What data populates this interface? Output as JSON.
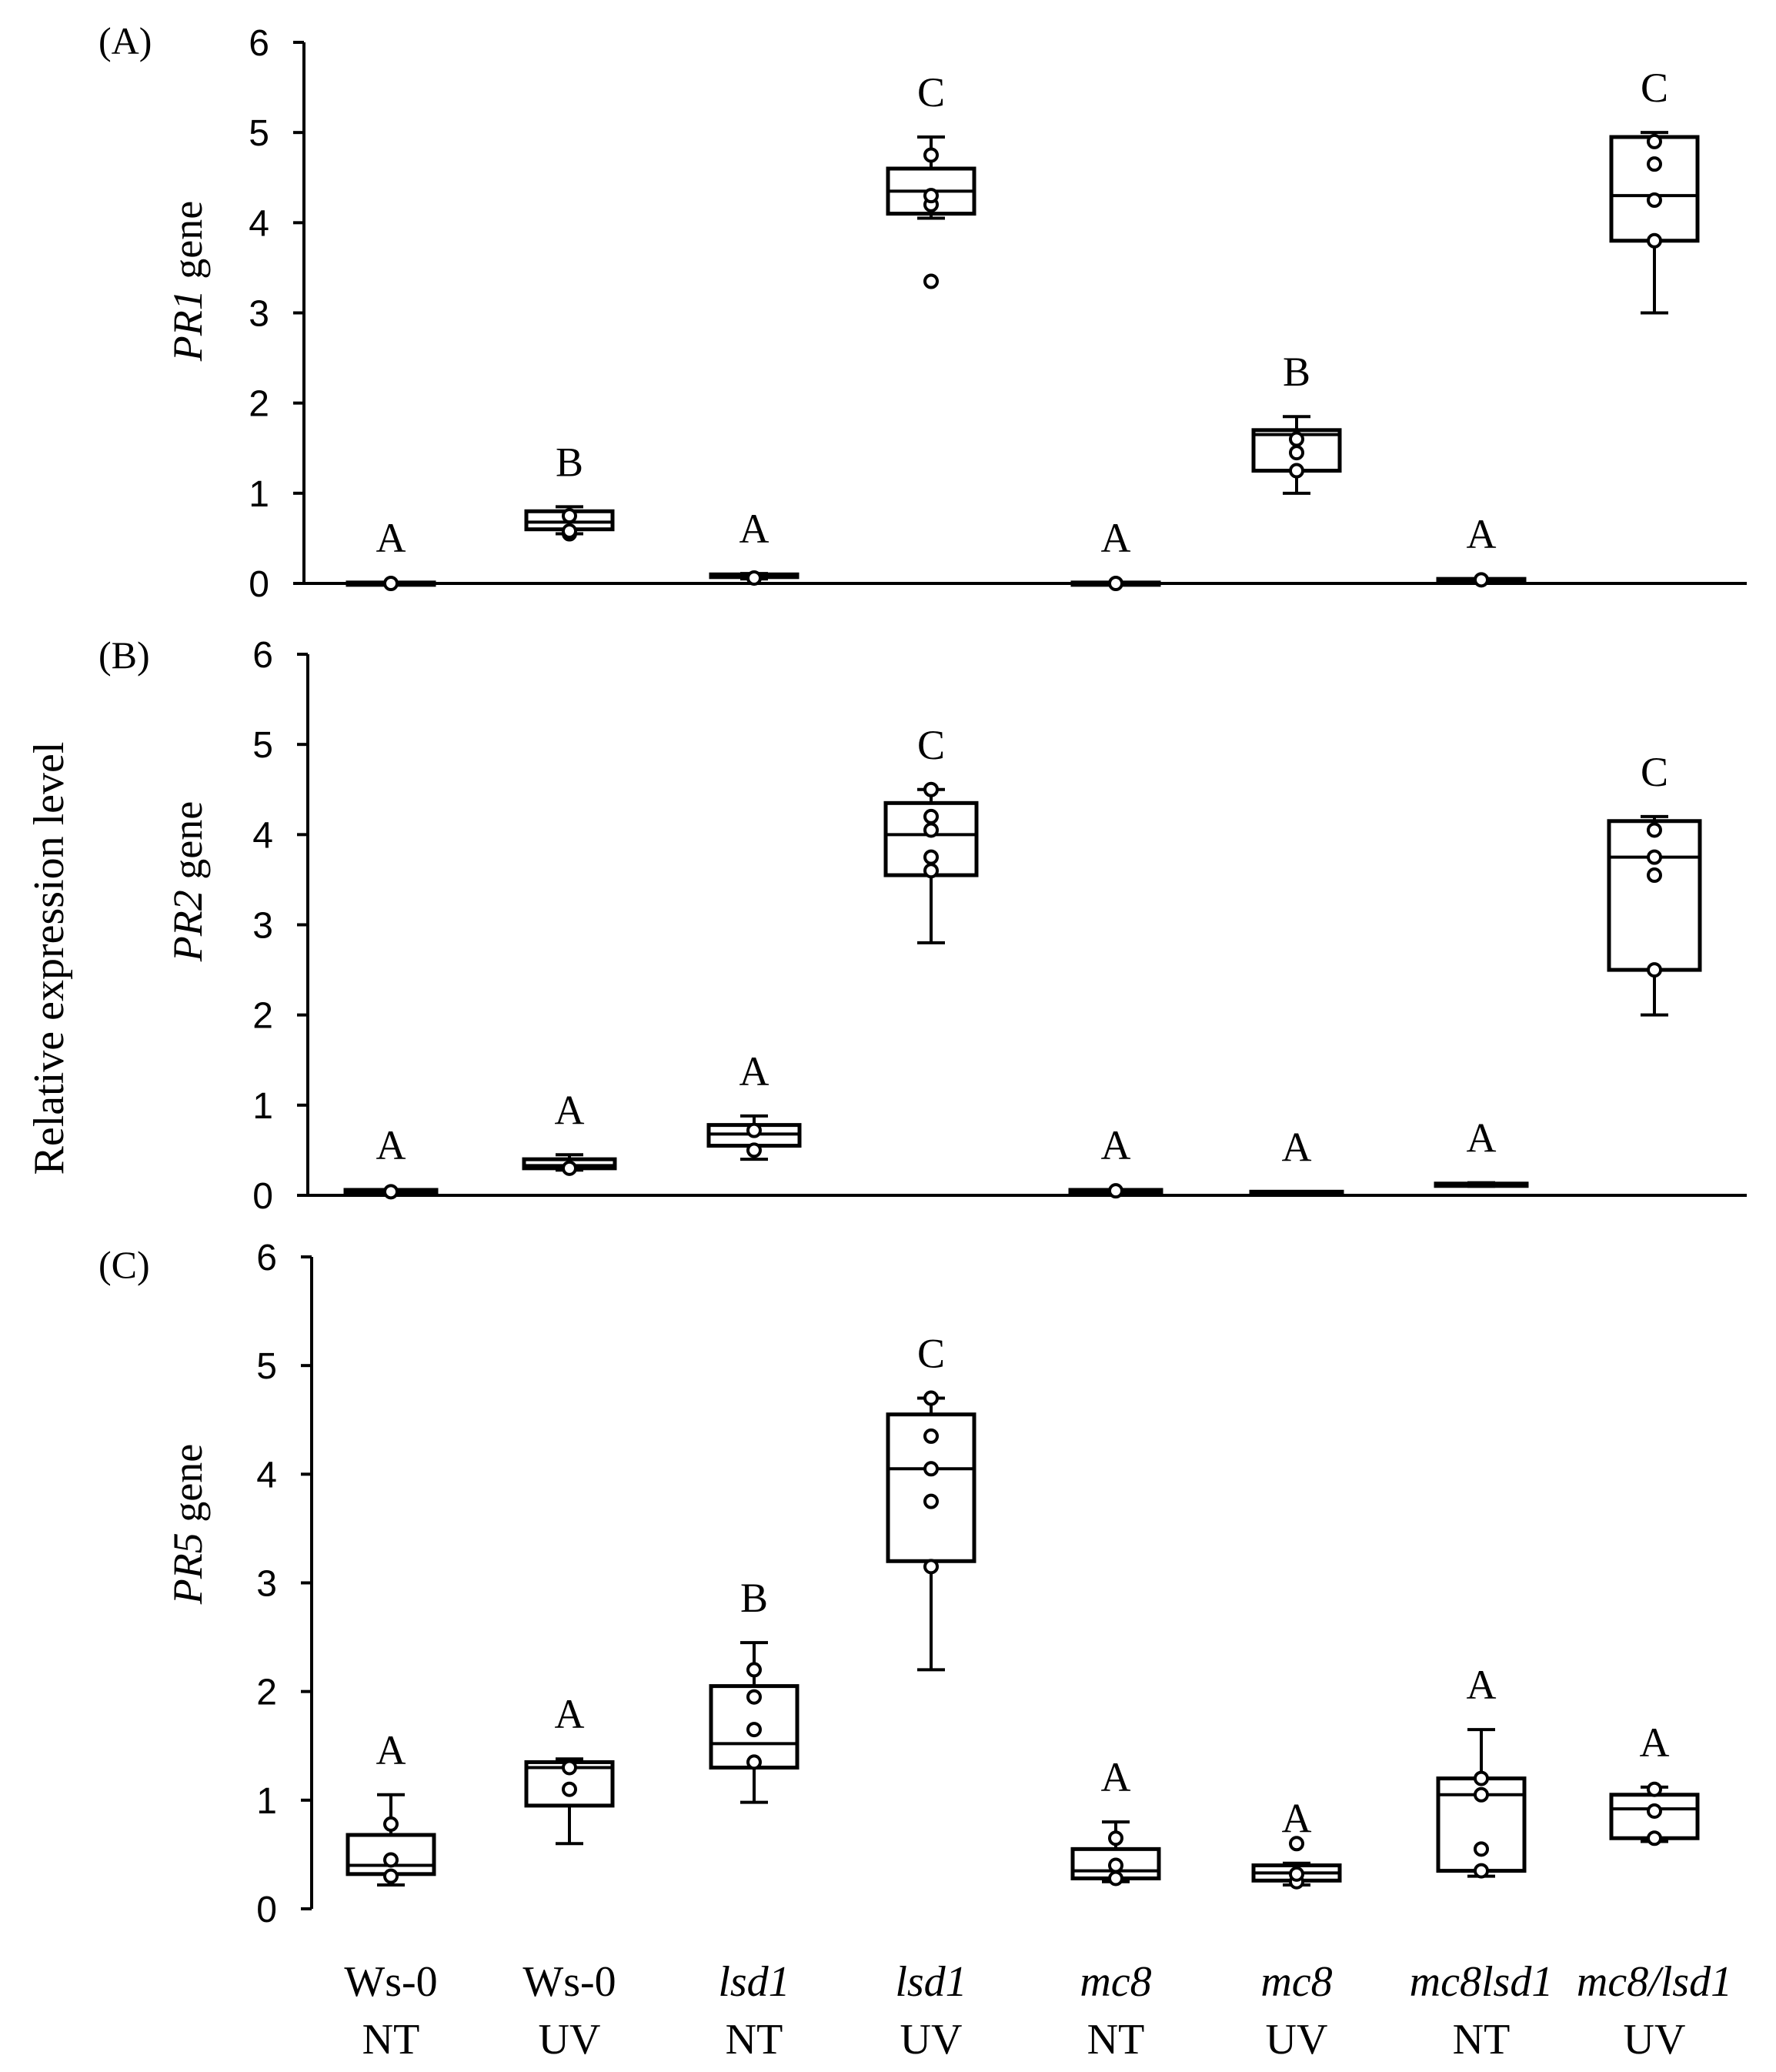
{
  "ylabel": "Relative expression level",
  "x_categories": [
    {
      "line1": "Ws-0",
      "line2": "NT",
      "italic": false
    },
    {
      "line1": "Ws-0",
      "line2": "UV",
      "italic": false
    },
    {
      "line1": "lsd1",
      "line2": "NT",
      "italic": true
    },
    {
      "line1": "lsd1",
      "line2": "UV",
      "italic": true
    },
    {
      "line1": "mc8",
      "line2": "NT",
      "italic": true
    },
    {
      "line1": "mc8",
      "line2": "UV",
      "italic": true
    },
    {
      "line1": "mc8lsd1",
      "line2": "NT",
      "italic": true
    },
    {
      "line1": "mc8/lsd1",
      "line2": "UV",
      "italic": true
    }
  ],
  "chart_data": [
    {
      "type": "box",
      "panel": "(A)",
      "gene": "PR1",
      "gene_suffix": " gene",
      "ylim": [
        0,
        6
      ],
      "yticks": [
        "0",
        "1",
        "2",
        "3",
        "4",
        "5",
        "6"
      ],
      "groups": [
        {
          "letter": "A",
          "min": 0.0,
          "q1": 0.0,
          "median": 0.0,
          "q3": 0.01,
          "max": 0.01,
          "points": [
            0.0
          ]
        },
        {
          "letter": "B",
          "min": 0.55,
          "q1": 0.6,
          "median": 0.68,
          "q3": 0.8,
          "max": 0.85,
          "points": [
            0.55,
            0.58,
            0.75
          ]
        },
        {
          "letter": "A",
          "min": 0.05,
          "q1": 0.07,
          "median": 0.08,
          "q3": 0.1,
          "max": 0.11,
          "points": [
            0.06
          ]
        },
        {
          "letter": "C",
          "min": 4.05,
          "q1": 4.1,
          "median": 4.35,
          "q3": 4.6,
          "max": 4.95,
          "points": [
            3.35,
            4.2,
            4.3,
            4.75
          ]
        },
        {
          "letter": "A",
          "min": 0.0,
          "q1": 0.0,
          "median": 0.0,
          "q3": 0.01,
          "max": 0.01,
          "points": [
            0.0
          ]
        },
        {
          "letter": "B",
          "min": 1.0,
          "q1": 1.25,
          "median": 1.65,
          "q3": 1.7,
          "max": 1.85,
          "points": [
            1.25,
            1.45,
            1.6
          ]
        },
        {
          "letter": "A",
          "min": 0.03,
          "q1": 0.03,
          "median": 0.04,
          "q3": 0.05,
          "max": 0.05,
          "points": [
            0.04
          ]
        },
        {
          "letter": "C",
          "min": 3.0,
          "q1": 3.8,
          "median": 4.3,
          "q3": 4.95,
          "max": 5.0,
          "points": [
            3.8,
            4.25,
            4.65,
            4.9
          ]
        }
      ]
    },
    {
      "type": "box",
      "panel": "(B)",
      "gene": "PR2",
      "gene_suffix": " gene",
      "ylim": [
        0,
        6
      ],
      "yticks": [
        "0",
        "1",
        "2",
        "3",
        "4",
        "5",
        "6"
      ],
      "groups": [
        {
          "letter": "A",
          "min": 0.03,
          "q1": 0.03,
          "median": 0.04,
          "q3": 0.06,
          "max": 0.06,
          "points": [
            0.04
          ]
        },
        {
          "letter": "A",
          "min": 0.28,
          "q1": 0.3,
          "median": 0.33,
          "q3": 0.4,
          "max": 0.45,
          "points": [
            0.3
          ]
        },
        {
          "letter": "A",
          "min": 0.4,
          "q1": 0.55,
          "median": 0.68,
          "q3": 0.78,
          "max": 0.88,
          "points": [
            0.5,
            0.72
          ]
        },
        {
          "letter": "C",
          "min": 2.8,
          "q1": 3.55,
          "median": 4.0,
          "q3": 4.35,
          "max": 4.5,
          "points": [
            3.6,
            3.75,
            4.05,
            4.2,
            4.5
          ]
        },
        {
          "letter": "A",
          "min": 0.04,
          "q1": 0.04,
          "median": 0.05,
          "q3": 0.06,
          "max": 0.06,
          "points": [
            0.05
          ]
        },
        {
          "letter": "A",
          "min": 0.02,
          "q1": 0.02,
          "median": 0.03,
          "q3": 0.04,
          "max": 0.04,
          "points": []
        },
        {
          "letter": "A",
          "min": 0.1,
          "q1": 0.11,
          "median": 0.12,
          "q3": 0.13,
          "max": 0.14,
          "points": []
        },
        {
          "letter": "C",
          "min": 2.0,
          "q1": 2.5,
          "median": 3.75,
          "q3": 4.15,
          "max": 4.2,
          "points": [
            2.5,
            3.55,
            3.75,
            4.05
          ]
        }
      ]
    },
    {
      "type": "box",
      "panel": "(C)",
      "gene": "PR5",
      "gene_suffix": " gene",
      "ylim": [
        0,
        6
      ],
      "yticks": [
        "0",
        "1",
        "2",
        "3",
        "4",
        "5",
        "6"
      ],
      "groups": [
        {
          "letter": "A",
          "min": 0.22,
          "q1": 0.32,
          "median": 0.4,
          "q3": 0.68,
          "max": 1.05,
          "points": [
            0.3,
            0.45,
            0.78
          ]
        },
        {
          "letter": "A",
          "min": 0.6,
          "q1": 0.95,
          "median": 1.3,
          "q3": 1.35,
          "max": 1.38,
          "points": [
            1.1,
            1.3
          ]
        },
        {
          "letter": "B",
          "min": 0.98,
          "q1": 1.3,
          "median": 1.52,
          "q3": 2.05,
          "max": 2.45,
          "points": [
            1.35,
            1.65,
            1.95,
            2.2
          ]
        },
        {
          "letter": "C",
          "min": 2.2,
          "q1": 3.2,
          "median": 4.05,
          "q3": 4.55,
          "max": 4.7,
          "points": [
            3.15,
            3.75,
            4.05,
            4.35,
            4.7
          ]
        },
        {
          "letter": "A",
          "min": 0.25,
          "q1": 0.28,
          "median": 0.35,
          "q3": 0.55,
          "max": 0.8,
          "points": [
            0.28,
            0.4,
            0.65
          ]
        },
        {
          "letter": "A",
          "min": 0.22,
          "q1": 0.26,
          "median": 0.33,
          "q3": 0.4,
          "max": 0.42,
          "points": [
            0.25,
            0.32,
            0.6
          ]
        },
        {
          "letter": "A",
          "min": 0.3,
          "q1": 0.35,
          "median": 1.05,
          "q3": 1.2,
          "max": 1.65,
          "points": [
            0.35,
            0.55,
            1.05,
            1.2
          ]
        },
        {
          "letter": "A",
          "min": 0.62,
          "q1": 0.65,
          "median": 0.92,
          "q3": 1.05,
          "max": 1.12,
          "points": [
            0.65,
            0.9,
            1.1
          ]
        }
      ]
    }
  ]
}
